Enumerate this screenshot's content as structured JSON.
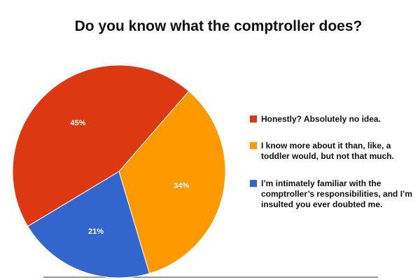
{
  "chart_data": {
    "type": "pie",
    "title": "Do you know what the comptroller does?",
    "categories": [
      "Honestly? Absolutely no idea.",
      "I know more about it than, like, a toddler would, but not that much.",
      "I’m intimately familiar with the comptroller’s responsibilities, and I’m insulted you ever doubted me."
    ],
    "values": [
      45,
      34,
      21
    ],
    "value_labels": [
      "45%",
      "34%",
      "21%"
    ],
    "colors": [
      "#dc3912",
      "#ff9900",
      "#3366cc"
    ]
  }
}
